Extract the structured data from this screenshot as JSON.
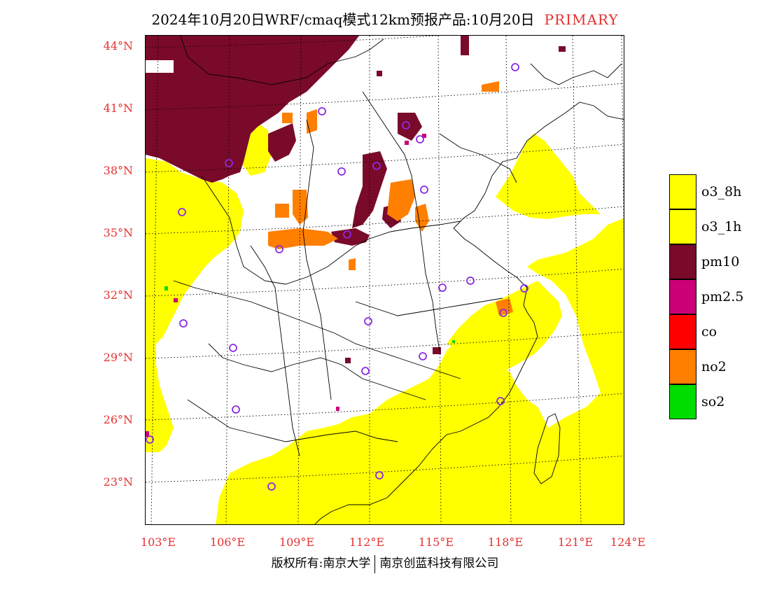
{
  "title": {
    "main": "2024年10月20日WRF/cmaq模式12km预报产品:10月20日",
    "tag": "PRIMARY"
  },
  "axes": {
    "lat_labels": [
      "44°N",
      "41°N",
      "38°N",
      "35°N",
      "32°N",
      "29°N",
      "26°N",
      "23°N"
    ],
    "lon_labels": [
      "103°E",
      "106°E",
      "109°E",
      "112°E",
      "115°E",
      "118°E",
      "121°E",
      "124°E"
    ]
  },
  "legend": [
    {
      "label": "o3_8h",
      "color": "#ffff00"
    },
    {
      "label": "o3_1h",
      "color": "#ffff00"
    },
    {
      "label": "pm10",
      "color": "#7a0a2a"
    },
    {
      "label": "pm2.5",
      "color": "#cc0077"
    },
    {
      "label": "co",
      "color": "#ff0000"
    },
    {
      "label": "no2",
      "color": "#ff7f00"
    },
    {
      "label": "so2",
      "color": "#00dd00"
    }
  ],
  "map": {
    "colors": {
      "o3": "#ffff00",
      "pm10": "#7a0a2a",
      "pm25": "#cc0077",
      "no2": "#ff7f00",
      "so2": "#00dd00",
      "station": "#8a2be2"
    }
  },
  "footer": {
    "left": "版权所有:南京大学",
    "right": "南京创蓝科技有限公司"
  }
}
